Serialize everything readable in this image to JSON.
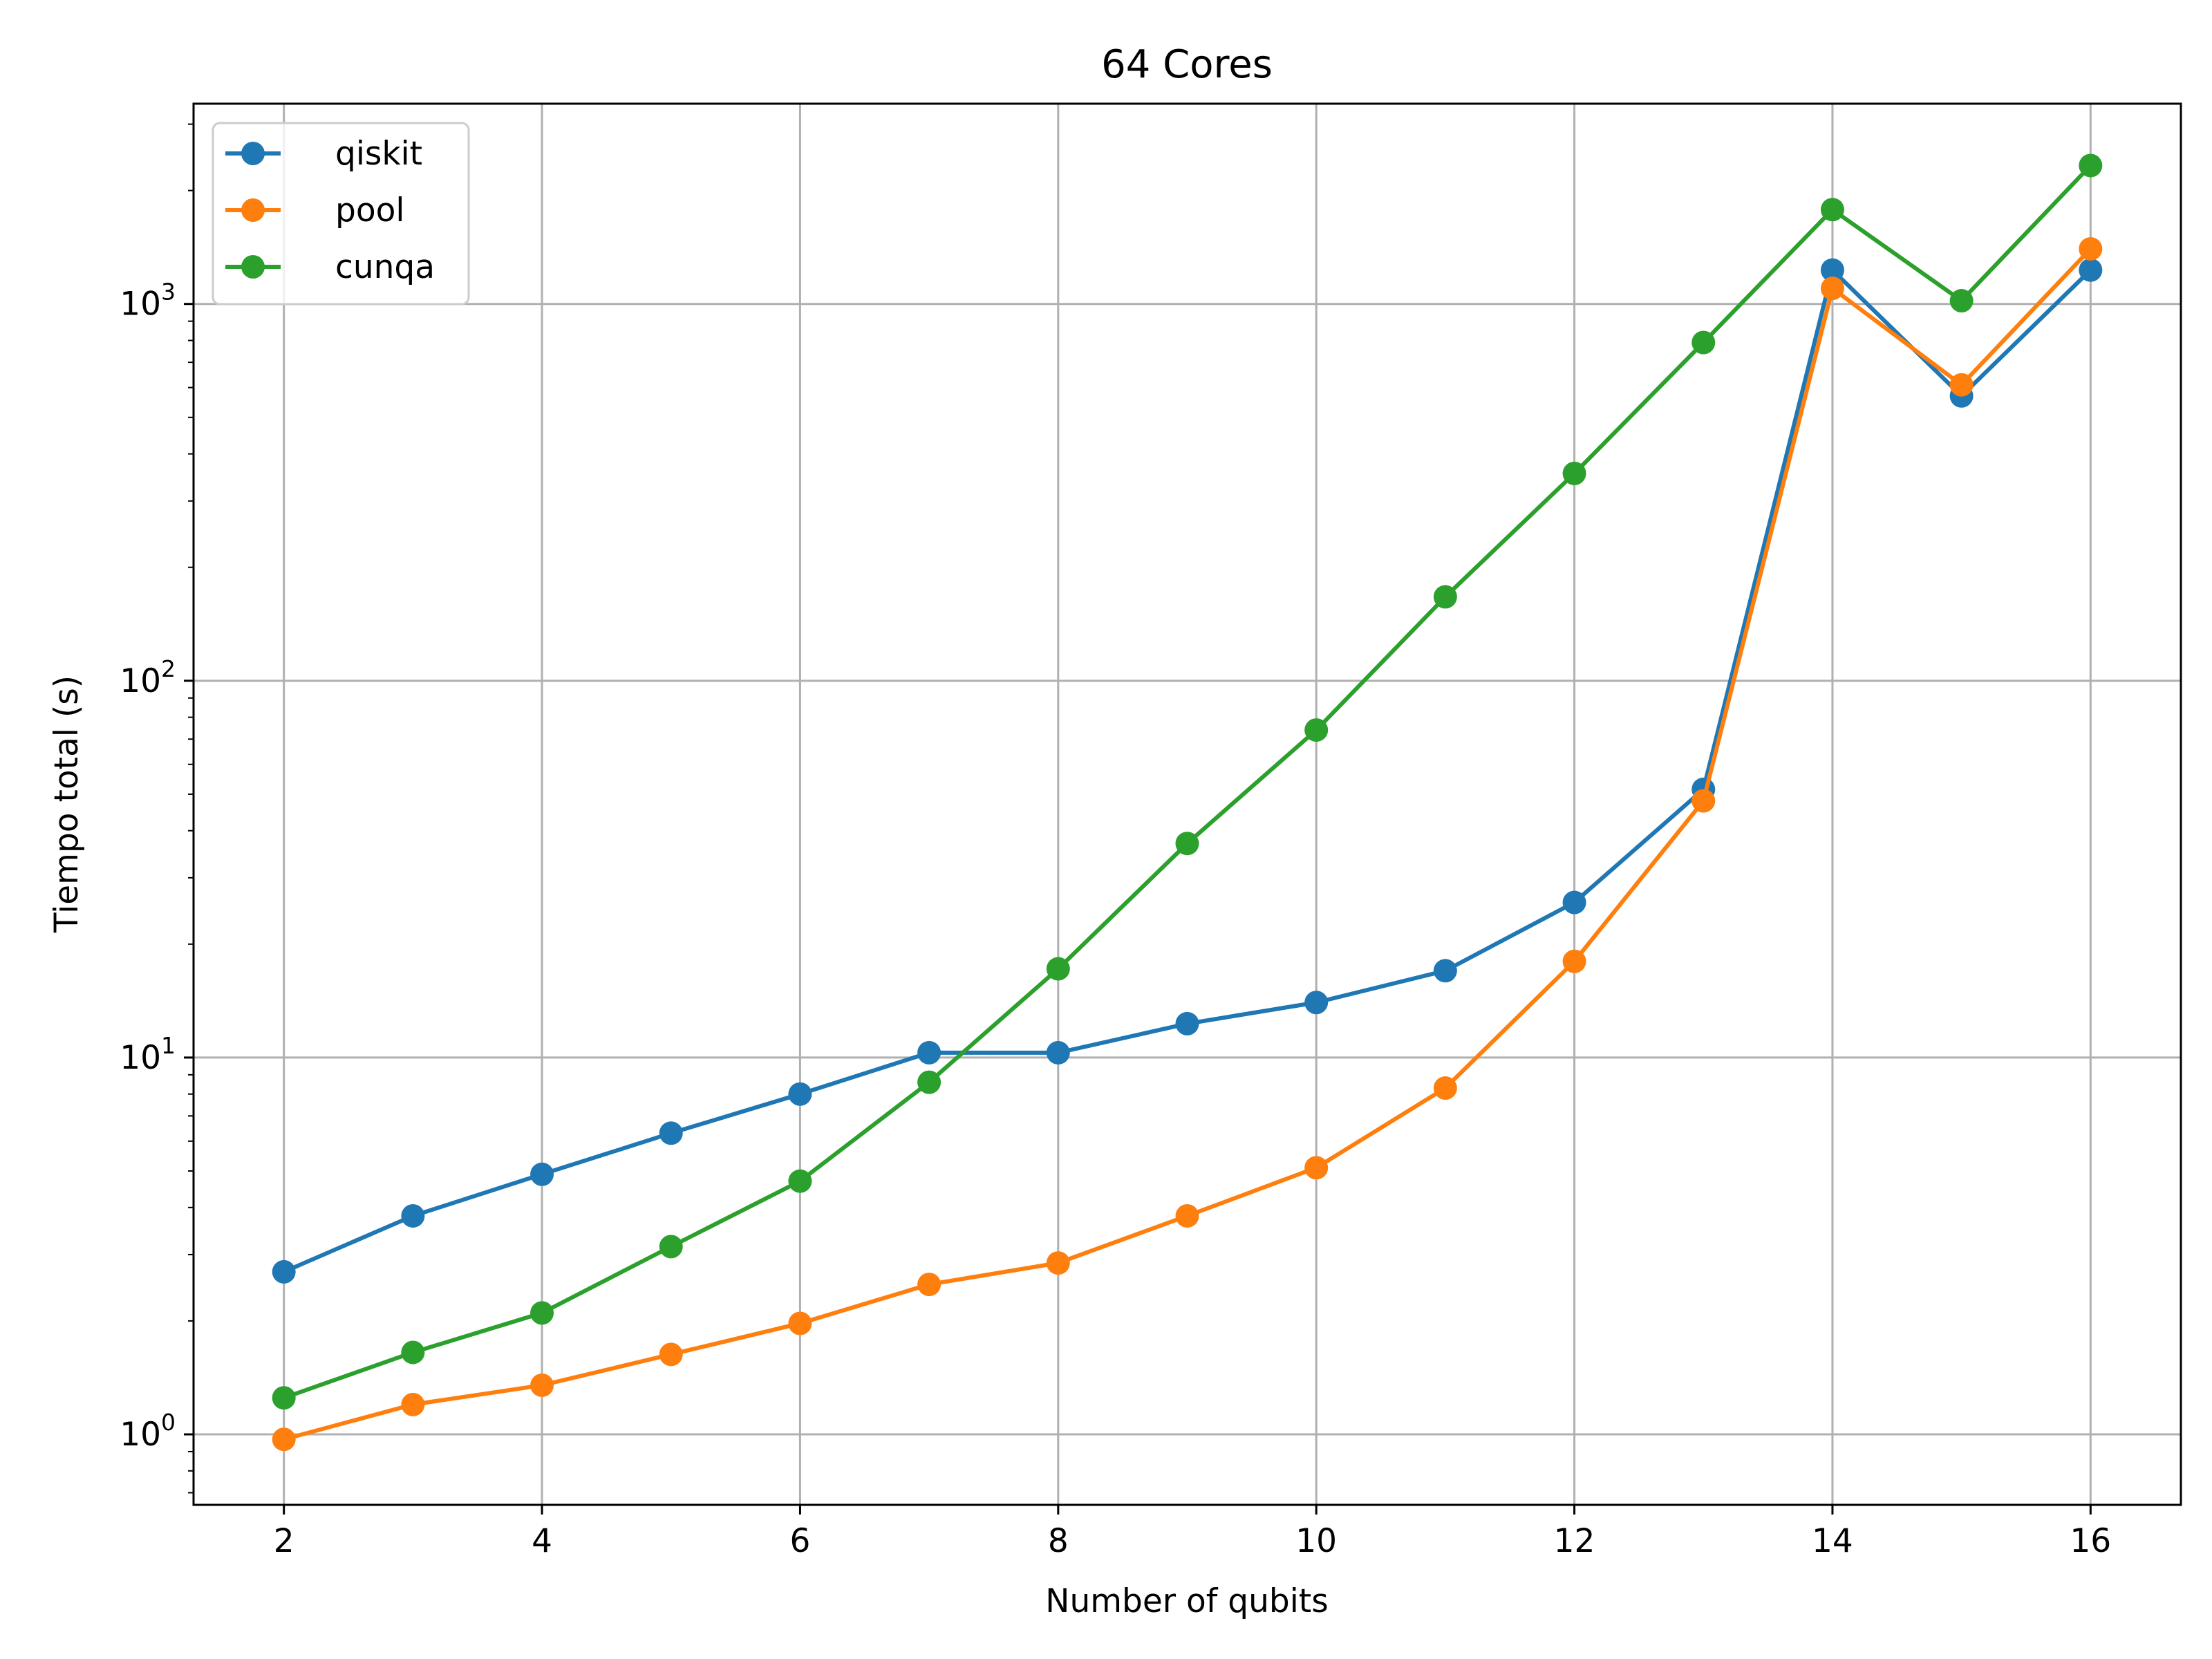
{
  "chart_data": {
    "type": "line",
    "title": "64 Cores",
    "xlabel": "Number of qubits",
    "ylabel": "Tiempo total (s)",
    "yscale": "log",
    "xlim": [
      1.3,
      16.7
    ],
    "ylim": [
      0.65,
      3400
    ],
    "grid": true,
    "legend_position": "top-left",
    "x": [
      2,
      3,
      4,
      5,
      6,
      7,
      8,
      9,
      10,
      11,
      12,
      13,
      14,
      15,
      16
    ],
    "x_ticks": [
      2,
      4,
      6,
      8,
      10,
      12,
      14,
      16
    ],
    "y_ticks": [
      {
        "value": 1,
        "base": "10",
        "exp": "0"
      },
      {
        "value": 10,
        "base": "10",
        "exp": "1"
      },
      {
        "value": 100,
        "base": "10",
        "exp": "2"
      },
      {
        "value": 1000,
        "base": "10",
        "exp": "3"
      }
    ],
    "series": [
      {
        "name": "qiskit",
        "color": "#1f77b4",
        "values": [
          2.7,
          3.8,
          4.9,
          6.3,
          8.0,
          10.3,
          10.3,
          12.3,
          14.0,
          17.0,
          25.8,
          51.5,
          1230,
          570,
          1230
        ]
      },
      {
        "name": "pool",
        "color": "#ff7f0e",
        "values": [
          0.97,
          1.2,
          1.35,
          1.63,
          1.97,
          2.5,
          2.85,
          3.8,
          5.1,
          8.3,
          18.0,
          48.0,
          1100,
          610,
          1400
        ]
      },
      {
        "name": "cunqa",
        "color": "#2ca02c",
        "values": [
          1.25,
          1.65,
          2.1,
          3.15,
          4.7,
          8.6,
          17.2,
          37.0,
          74.0,
          167,
          355,
          790,
          1780,
          1020,
          2330
        ]
      }
    ]
  }
}
